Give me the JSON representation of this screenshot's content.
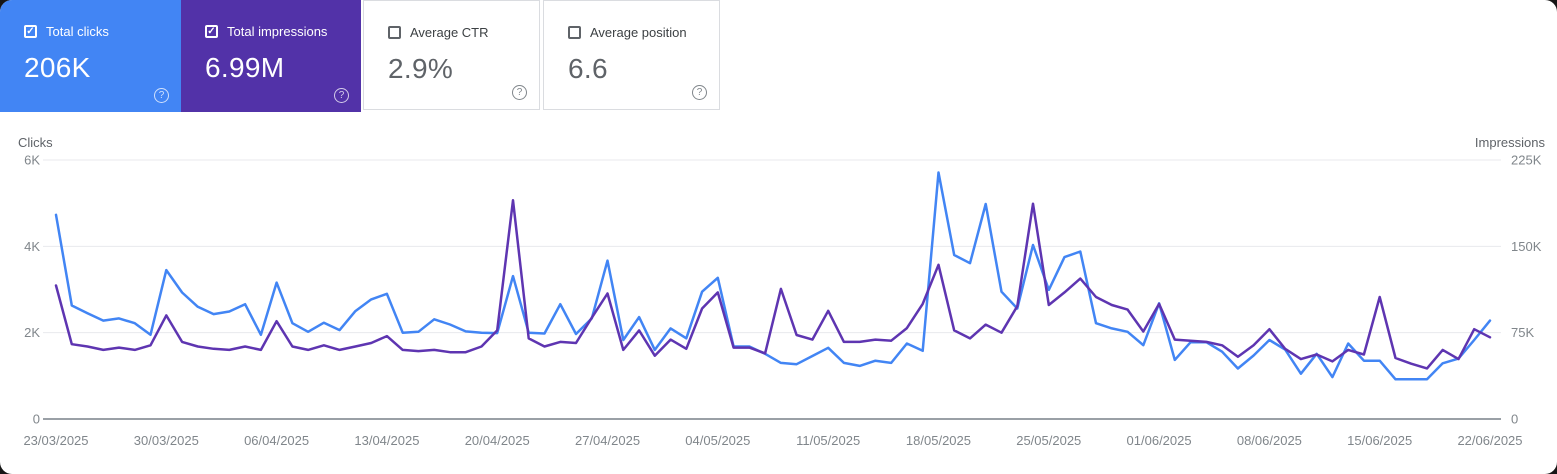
{
  "cards": [
    {
      "label": "Total clicks",
      "value": "206K",
      "checked": true,
      "bg": "#4285f4",
      "style": "colored"
    },
    {
      "label": "Total impressions",
      "value": "6.99M",
      "checked": true,
      "bg": "#5232a8",
      "style": "colored"
    },
    {
      "label": "Average CTR",
      "value": "2.9%",
      "checked": false,
      "bg": "",
      "style": "white"
    },
    {
      "label": "Average position",
      "value": "6.6",
      "checked": false,
      "bg": "",
      "style": "white"
    }
  ],
  "icons": {
    "check": "✓",
    "help": "?"
  },
  "chart_data": {
    "type": "line",
    "x_tick_labels": [
      "23/03/2025",
      "30/03/2025",
      "06/04/2025",
      "13/04/2025",
      "20/04/2025",
      "27/04/2025",
      "04/05/2025",
      "11/05/2025",
      "18/05/2025",
      "25/05/2025",
      "01/06/2025",
      "08/06/2025",
      "15/06/2025",
      "22/06/2025"
    ],
    "x_tick_every_days": 7,
    "left_axis": {
      "title": "Clicks",
      "tick_labels": [
        "6K",
        "4K",
        "2K",
        "0"
      ],
      "tick_values": [
        6000,
        4000,
        2000,
        0
      ],
      "max": 6000
    },
    "right_axis": {
      "title": "Impressions",
      "tick_labels": [
        "225K",
        "150K",
        "75K",
        "0"
      ],
      "tick_values": [
        225000,
        150000,
        75000,
        0
      ],
      "max": 225000
    },
    "grid": true,
    "legend_position": "none",
    "series": [
      {
        "name": "Total clicks",
        "axis": "left",
        "color": "#4285f4",
        "values": [
          4730,
          2630,
          2450,
          2280,
          2330,
          2220,
          1950,
          3450,
          2930,
          2600,
          2430,
          2490,
          2660,
          1950,
          3160,
          2220,
          2020,
          2230,
          2060,
          2500,
          2770,
          2900,
          2000,
          2020,
          2310,
          2190,
          2030,
          2000,
          1990,
          3310,
          2000,
          1980,
          2660,
          1970,
          2330,
          3670,
          1830,
          2360,
          1600,
          2100,
          1870,
          2950,
          3270,
          1680,
          1680,
          1510,
          1300,
          1270,
          1460,
          1650,
          1300,
          1230,
          1350,
          1300,
          1750,
          1580,
          5710,
          3800,
          3610,
          4980,
          2950,
          2560,
          4030,
          2990,
          3750,
          3880,
          2220,
          2100,
          2020,
          1710,
          2680,
          1370,
          1780,
          1780,
          1560,
          1170,
          1470,
          1830,
          1610,
          1050,
          1510,
          970,
          1750,
          1350,
          1350,
          920,
          920,
          920,
          1290,
          1400,
          1830,
          2280
        ]
      },
      {
        "name": "Total impressions",
        "axis": "right",
        "color": "#5e35b1",
        "values": [
          116000,
          65000,
          63000,
          60000,
          62000,
          60000,
          64000,
          90000,
          67000,
          63000,
          61000,
          60000,
          63000,
          60000,
          85000,
          63000,
          60000,
          64000,
          60000,
          63000,
          66000,
          72000,
          60000,
          59000,
          60000,
          58000,
          58000,
          63000,
          77000,
          190000,
          70000,
          63000,
          67000,
          66000,
          88000,
          109000,
          60000,
          77000,
          55000,
          69000,
          61000,
          96000,
          110000,
          62000,
          62000,
          57000,
          113000,
          73000,
          69000,
          94000,
          67000,
          67000,
          69000,
          68000,
          79000,
          100000,
          134000,
          77000,
          70000,
          82000,
          75000,
          98000,
          187000,
          99000,
          110000,
          122000,
          106000,
          99000,
          95000,
          76000,
          100000,
          69000,
          68000,
          67000,
          64000,
          54000,
          64000,
          78000,
          61000,
          52000,
          56000,
          50000,
          60000,
          56000,
          106000,
          53000,
          48000,
          44000,
          60000,
          52000,
          78000,
          71000
        ]
      }
    ],
    "colors": {
      "gridline": "#e8eaed",
      "axis_line": "#9aa0a6",
      "tick_text": "#80868b",
      "axis_title_text": "#5f6368",
      "date_text": "#80868b"
    }
  }
}
